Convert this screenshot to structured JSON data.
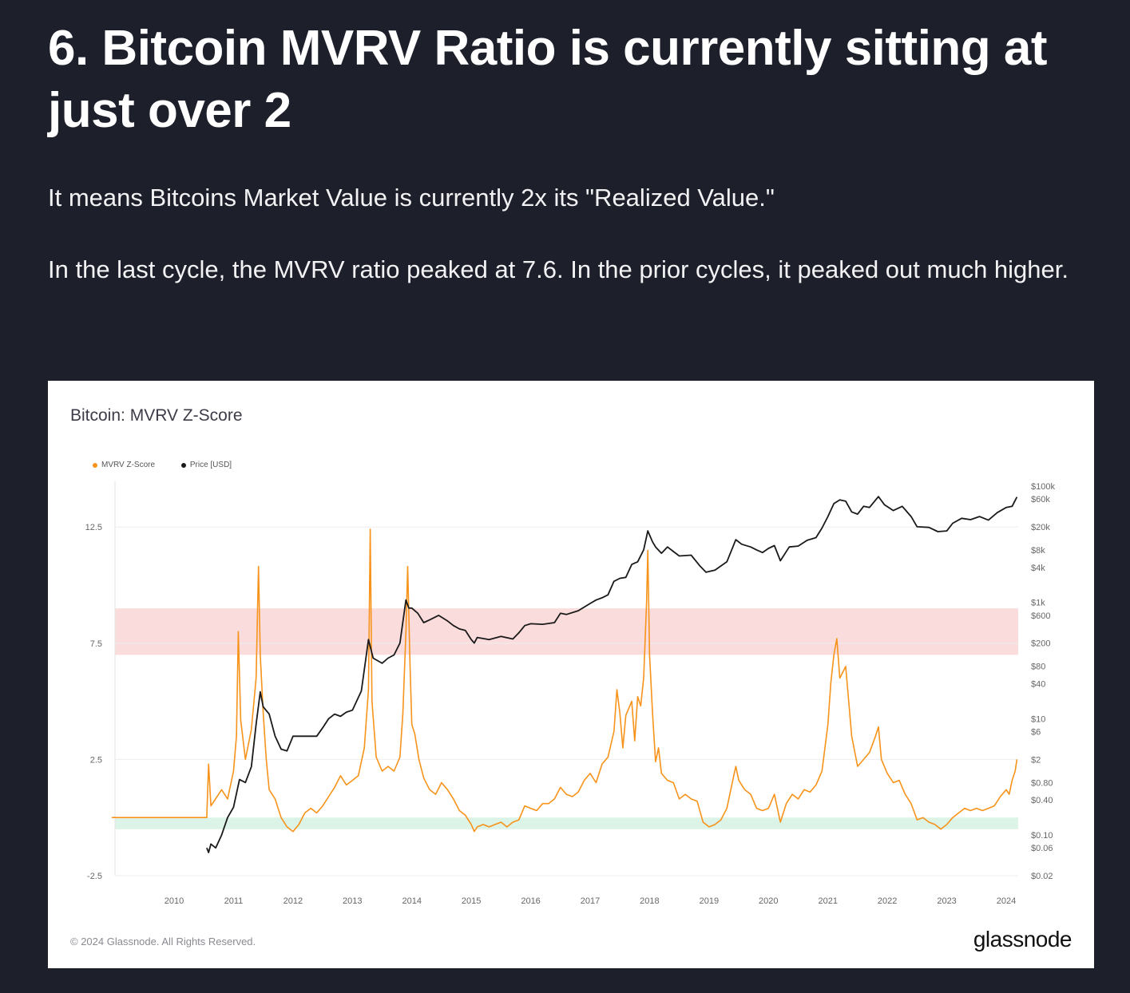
{
  "article": {
    "headline": "6. Bitcoin MVRV Ratio is currently sitting at just over 2",
    "paragraph_1": "It means Bitcoins Market Value is currently 2x its \"Realized Value.\"",
    "paragraph_2": "In the last cycle, the MVRV ratio peaked at 7.6. In the prior cycles, it peaked out much higher."
  },
  "card": {
    "copyright": "© 2024 Glassnode. All Rights Reserved.",
    "brand": "glassnode"
  },
  "colors": {
    "background": "#1d1f2a",
    "zscore": "#f7931a",
    "price": "#1a1a1a",
    "high_band": "#fbdcdc",
    "low_band": "#dcf3e8"
  },
  "chart_data": {
    "type": "line",
    "title": "Bitcoin: MVRV Z-Score",
    "legend": [
      "MVRV Z-Score",
      "Price [USD]"
    ],
    "legend_position": "top-left",
    "x_ticks": [
      "2010",
      "2011",
      "2012",
      "2013",
      "2014",
      "2015",
      "2016",
      "2017",
      "2018",
      "2019",
      "2020",
      "2021",
      "2022",
      "2023",
      "2024"
    ],
    "y_left_ticks": [
      -2.5,
      2.5,
      7.5,
      12.5
    ],
    "y_left_range": [
      -2.5,
      14.5
    ],
    "y_right_ticks": [
      "$100k",
      "$60k",
      "$20k",
      "$8k",
      "$4k",
      "$1k",
      "$600",
      "$200",
      "$80",
      "$40",
      "$10",
      "$6",
      "$2",
      "$0.80",
      "$0.40",
      "$0.10",
      "$0.06",
      "$0.02"
    ],
    "y_right_log_range": [
      0.02,
      100000
    ],
    "bands": [
      {
        "from": 7.0,
        "to": 9.0,
        "color": "#fbdcdc"
      },
      {
        "from": -0.5,
        "to": 0.0,
        "color": "#dcf3e8"
      }
    ],
    "series": [
      {
        "name": "MVRV Z-Score",
        "color": "#f7931a",
        "points": [
          [
            2008.95,
            0
          ],
          [
            2010.55,
            0
          ],
          [
            2010.58,
            2.3
          ],
          [
            2010.62,
            0.5
          ],
          [
            2010.8,
            1.2
          ],
          [
            2010.9,
            0.8
          ],
          [
            2011.0,
            2.0
          ],
          [
            2011.05,
            3.5
          ],
          [
            2011.08,
            8.0
          ],
          [
            2011.12,
            4.2
          ],
          [
            2011.2,
            2.5
          ],
          [
            2011.3,
            3.8
          ],
          [
            2011.38,
            6.0
          ],
          [
            2011.42,
            10.8
          ],
          [
            2011.45,
            7.0
          ],
          [
            2011.5,
            4.5
          ],
          [
            2011.55,
            2.5
          ],
          [
            2011.6,
            1.2
          ],
          [
            2011.7,
            0.8
          ],
          [
            2011.8,
            0.0
          ],
          [
            2011.9,
            -0.4
          ],
          [
            2012.0,
            -0.6
          ],
          [
            2012.1,
            -0.3
          ],
          [
            2012.2,
            0.2
          ],
          [
            2012.3,
            0.4
          ],
          [
            2012.4,
            0.2
          ],
          [
            2012.5,
            0.5
          ],
          [
            2012.6,
            0.9
          ],
          [
            2012.7,
            1.3
          ],
          [
            2012.8,
            1.8
          ],
          [
            2012.9,
            1.4
          ],
          [
            2013.0,
            1.6
          ],
          [
            2013.1,
            1.8
          ],
          [
            2013.2,
            3.0
          ],
          [
            2013.27,
            5.5
          ],
          [
            2013.3,
            12.4
          ],
          [
            2013.33,
            5.0
          ],
          [
            2013.4,
            2.6
          ],
          [
            2013.5,
            2.0
          ],
          [
            2013.6,
            2.2
          ],
          [
            2013.7,
            2.0
          ],
          [
            2013.8,
            2.6
          ],
          [
            2013.85,
            4.5
          ],
          [
            2013.9,
            8.0
          ],
          [
            2013.93,
            10.8
          ],
          [
            2013.97,
            6.5
          ],
          [
            2014.0,
            4.0
          ],
          [
            2014.05,
            3.6
          ],
          [
            2014.12,
            2.5
          ],
          [
            2014.2,
            1.7
          ],
          [
            2014.3,
            1.2
          ],
          [
            2014.4,
            1.0
          ],
          [
            2014.5,
            1.5
          ],
          [
            2014.6,
            1.2
          ],
          [
            2014.7,
            0.8
          ],
          [
            2014.8,
            0.3
          ],
          [
            2014.9,
            0.1
          ],
          [
            2015.0,
            -0.3
          ],
          [
            2015.05,
            -0.6
          ],
          [
            2015.1,
            -0.4
          ],
          [
            2015.2,
            -0.3
          ],
          [
            2015.3,
            -0.4
          ],
          [
            2015.4,
            -0.3
          ],
          [
            2015.5,
            -0.2
          ],
          [
            2015.6,
            -0.4
          ],
          [
            2015.7,
            -0.2
          ],
          [
            2015.8,
            -0.1
          ],
          [
            2015.9,
            0.5
          ],
          [
            2016.0,
            0.4
          ],
          [
            2016.1,
            0.3
          ],
          [
            2016.2,
            0.6
          ],
          [
            2016.3,
            0.6
          ],
          [
            2016.4,
            0.8
          ],
          [
            2016.5,
            1.3
          ],
          [
            2016.6,
            1.0
          ],
          [
            2016.7,
            0.9
          ],
          [
            2016.8,
            1.1
          ],
          [
            2016.9,
            1.6
          ],
          [
            2017.0,
            1.9
          ],
          [
            2017.1,
            1.5
          ],
          [
            2017.2,
            2.3
          ],
          [
            2017.3,
            2.6
          ],
          [
            2017.4,
            3.7
          ],
          [
            2017.45,
            5.5
          ],
          [
            2017.5,
            4.5
          ],
          [
            2017.55,
            3.0
          ],
          [
            2017.6,
            4.4
          ],
          [
            2017.7,
            5.0
          ],
          [
            2017.75,
            3.3
          ],
          [
            2017.8,
            5.2
          ],
          [
            2017.85,
            4.8
          ],
          [
            2017.9,
            6.0
          ],
          [
            2017.95,
            9.3
          ],
          [
            2017.97,
            11.5
          ],
          [
            2018.0,
            7.0
          ],
          [
            2018.05,
            4.5
          ],
          [
            2018.1,
            2.4
          ],
          [
            2018.15,
            3.0
          ],
          [
            2018.2,
            1.9
          ],
          [
            2018.3,
            1.6
          ],
          [
            2018.4,
            1.5
          ],
          [
            2018.5,
            0.8
          ],
          [
            2018.6,
            1.0
          ],
          [
            2018.7,
            0.8
          ],
          [
            2018.8,
            0.7
          ],
          [
            2018.9,
            -0.2
          ],
          [
            2019.0,
            -0.4
          ],
          [
            2019.1,
            -0.3
          ],
          [
            2019.2,
            -0.1
          ],
          [
            2019.3,
            0.4
          ],
          [
            2019.4,
            1.6
          ],
          [
            2019.45,
            2.2
          ],
          [
            2019.5,
            1.6
          ],
          [
            2019.6,
            1.2
          ],
          [
            2019.7,
            1.0
          ],
          [
            2019.8,
            0.4
          ],
          [
            2019.9,
            0.3
          ],
          [
            2020.0,
            0.4
          ],
          [
            2020.1,
            1.0
          ],
          [
            2020.2,
            -0.2
          ],
          [
            2020.3,
            0.6
          ],
          [
            2020.4,
            1.0
          ],
          [
            2020.5,
            0.8
          ],
          [
            2020.6,
            1.2
          ],
          [
            2020.7,
            1.1
          ],
          [
            2020.8,
            1.4
          ],
          [
            2020.9,
            2.0
          ],
          [
            2021.0,
            4.0
          ],
          [
            2021.05,
            5.8
          ],
          [
            2021.1,
            7.0
          ],
          [
            2021.15,
            7.7
          ],
          [
            2021.2,
            6.0
          ],
          [
            2021.3,
            6.5
          ],
          [
            2021.4,
            3.5
          ],
          [
            2021.5,
            2.2
          ],
          [
            2021.6,
            2.5
          ],
          [
            2021.7,
            2.8
          ],
          [
            2021.8,
            3.5
          ],
          [
            2021.85,
            3.9
          ],
          [
            2021.9,
            2.5
          ],
          [
            2022.0,
            1.9
          ],
          [
            2022.1,
            1.5
          ],
          [
            2022.2,
            1.6
          ],
          [
            2022.3,
            1.0
          ],
          [
            2022.4,
            0.6
          ],
          [
            2022.5,
            -0.1
          ],
          [
            2022.6,
            0.0
          ],
          [
            2022.7,
            -0.2
          ],
          [
            2022.8,
            -0.3
          ],
          [
            2022.9,
            -0.5
          ],
          [
            2023.0,
            -0.3
          ],
          [
            2023.1,
            0.0
          ],
          [
            2023.2,
            0.2
          ],
          [
            2023.3,
            0.4
          ],
          [
            2023.4,
            0.3
          ],
          [
            2023.5,
            0.4
          ],
          [
            2023.6,
            0.3
          ],
          [
            2023.7,
            0.4
          ],
          [
            2023.8,
            0.5
          ],
          [
            2023.9,
            0.9
          ],
          [
            2024.0,
            1.2
          ],
          [
            2024.05,
            1.0
          ],
          [
            2024.1,
            1.6
          ],
          [
            2024.15,
            2.0
          ],
          [
            2024.18,
            2.5
          ]
        ]
      },
      {
        "name": "Price [USD]",
        "color": "#1a1a1a",
        "points": [
          [
            2010.55,
            0.06
          ],
          [
            2010.58,
            0.05
          ],
          [
            2010.62,
            0.07
          ],
          [
            2010.7,
            0.06
          ],
          [
            2010.8,
            0.1
          ],
          [
            2010.9,
            0.2
          ],
          [
            2011.0,
            0.3
          ],
          [
            2011.1,
            0.9
          ],
          [
            2011.2,
            0.8
          ],
          [
            2011.3,
            1.5
          ],
          [
            2011.38,
            8
          ],
          [
            2011.45,
            29
          ],
          [
            2011.5,
            16
          ],
          [
            2011.6,
            12
          ],
          [
            2011.7,
            5
          ],
          [
            2011.8,
            3
          ],
          [
            2011.9,
            2.8
          ],
          [
            2012.0,
            5
          ],
          [
            2012.1,
            5
          ],
          [
            2012.2,
            5
          ],
          [
            2012.3,
            5
          ],
          [
            2012.4,
            5
          ],
          [
            2012.5,
            7
          ],
          [
            2012.6,
            10
          ],
          [
            2012.7,
            12
          ],
          [
            2012.8,
            11
          ],
          [
            2012.9,
            13
          ],
          [
            2013.0,
            14
          ],
          [
            2013.15,
            30
          ],
          [
            2013.27,
            230
          ],
          [
            2013.35,
            110
          ],
          [
            2013.5,
            90
          ],
          [
            2013.6,
            110
          ],
          [
            2013.7,
            125
          ],
          [
            2013.8,
            200
          ],
          [
            2013.9,
            1100
          ],
          [
            2013.95,
            800
          ],
          [
            2014.0,
            800
          ],
          [
            2014.1,
            650
          ],
          [
            2014.2,
            450
          ],
          [
            2014.3,
            500
          ],
          [
            2014.45,
            600
          ],
          [
            2014.6,
            480
          ],
          [
            2014.7,
            400
          ],
          [
            2014.8,
            350
          ],
          [
            2014.9,
            330
          ],
          [
            2015.0,
            230
          ],
          [
            2015.05,
            200
          ],
          [
            2015.1,
            250
          ],
          [
            2015.3,
            230
          ],
          [
            2015.5,
            260
          ],
          [
            2015.7,
            235
          ],
          [
            2015.8,
            300
          ],
          [
            2015.9,
            400
          ],
          [
            2016.0,
            430
          ],
          [
            2016.2,
            420
          ],
          [
            2016.4,
            450
          ],
          [
            2016.5,
            650
          ],
          [
            2016.6,
            620
          ],
          [
            2016.8,
            720
          ],
          [
            2017.0,
            960
          ],
          [
            2017.1,
            1100
          ],
          [
            2017.2,
            1200
          ],
          [
            2017.3,
            1350
          ],
          [
            2017.4,
            2300
          ],
          [
            2017.5,
            2600
          ],
          [
            2017.6,
            2700
          ],
          [
            2017.7,
            4500
          ],
          [
            2017.8,
            5000
          ],
          [
            2017.9,
            8000
          ],
          [
            2017.97,
            17000
          ],
          [
            2018.05,
            11000
          ],
          [
            2018.1,
            9000
          ],
          [
            2018.2,
            7000
          ],
          [
            2018.3,
            9000
          ],
          [
            2018.4,
            7500
          ],
          [
            2018.5,
            6300
          ],
          [
            2018.7,
            6500
          ],
          [
            2018.85,
            4200
          ],
          [
            2018.95,
            3300
          ],
          [
            2019.1,
            3600
          ],
          [
            2019.3,
            5000
          ],
          [
            2019.45,
            12000
          ],
          [
            2019.55,
            10000
          ],
          [
            2019.7,
            9000
          ],
          [
            2019.8,
            8000
          ],
          [
            2019.9,
            7200
          ],
          [
            2020.0,
            8500
          ],
          [
            2020.1,
            9500
          ],
          [
            2020.2,
            5200
          ],
          [
            2020.35,
            9000
          ],
          [
            2020.5,
            9300
          ],
          [
            2020.65,
            11700
          ],
          [
            2020.8,
            13000
          ],
          [
            2020.9,
            19000
          ],
          [
            2021.0,
            30000
          ],
          [
            2021.1,
            50000
          ],
          [
            2021.2,
            58000
          ],
          [
            2021.3,
            55000
          ],
          [
            2021.4,
            36000
          ],
          [
            2021.5,
            33000
          ],
          [
            2021.6,
            45000
          ],
          [
            2021.7,
            43000
          ],
          [
            2021.85,
            66000
          ],
          [
            2021.95,
            48000
          ],
          [
            2022.1,
            38000
          ],
          [
            2022.25,
            45000
          ],
          [
            2022.4,
            30000
          ],
          [
            2022.5,
            20000
          ],
          [
            2022.7,
            19500
          ],
          [
            2022.85,
            16500
          ],
          [
            2023.0,
            17000
          ],
          [
            2023.1,
            23000
          ],
          [
            2023.25,
            28000
          ],
          [
            2023.4,
            26500
          ],
          [
            2023.55,
            30000
          ],
          [
            2023.7,
            26000
          ],
          [
            2023.85,
            35000
          ],
          [
            2024.0,
            43000
          ],
          [
            2024.1,
            45000
          ],
          [
            2024.18,
            65000
          ]
        ]
      }
    ]
  }
}
